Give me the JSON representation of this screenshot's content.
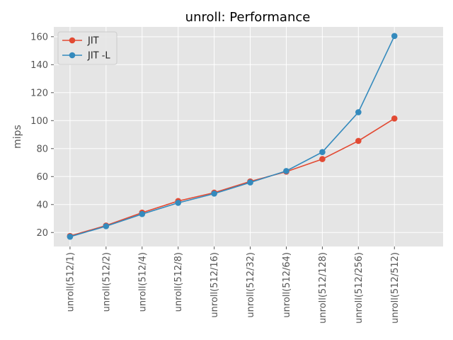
{
  "chart_data": {
    "type": "line",
    "title": "unroll: Performance",
    "xlabel": "",
    "ylabel": "mips",
    "categories": [
      "unroll(512/1)",
      "unroll(512/2)",
      "unroll(512/4)",
      "unroll(512/8)",
      "unroll(512/16)",
      "unroll(512/32)",
      "unroll(512/64)",
      "unroll(512/128)",
      "unroll(512/256)",
      "unroll(512/512)"
    ],
    "series": [
      {
        "name": "JIT",
        "color": "#E24A33",
        "values": [
          17.5,
          25.0,
          34.2,
          42.5,
          48.5,
          56.5,
          63.5,
          72.5,
          85.5,
          101.5
        ]
      },
      {
        "name": "JIT -L",
        "color": "#348ABD",
        "values": [
          17.0,
          24.5,
          33.2,
          41.2,
          47.8,
          55.8,
          64.0,
          77.5,
          106.0,
          160.5
        ]
      }
    ],
    "ylim": [
      10.0,
      167.0
    ],
    "yticks": [
      20,
      40,
      60,
      80,
      100,
      120,
      140,
      160
    ],
    "grid": true,
    "legend_position": "upper-left",
    "background_color": "#E5E5E5"
  }
}
